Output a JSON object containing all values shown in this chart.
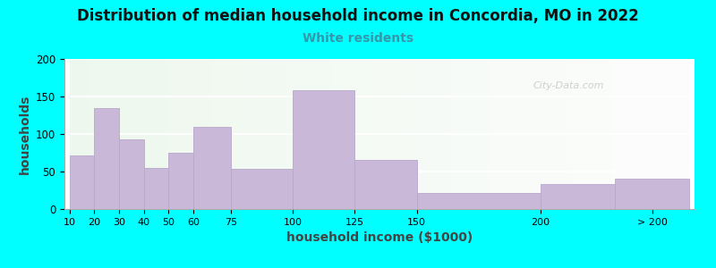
{
  "title": "Distribution of median household income in Concordia, MO in 2022",
  "subtitle": "White residents",
  "xlabel": "household income ($1000)",
  "ylabel": "households",
  "background_outer": "#00FFFF",
  "bar_color": "#c9b8d8",
  "bar_edge_color": "#b8a8cc",
  "title_fontsize": 12,
  "subtitle_fontsize": 10,
  "subtitle_color": "#3399aa",
  "xlabel_fontsize": 10,
  "ylabel_fontsize": 10,
  "bin_edges": [
    10,
    20,
    30,
    40,
    50,
    60,
    75,
    100,
    125,
    150,
    200,
    230,
    260
  ],
  "values": [
    72,
    135,
    93,
    55,
    75,
    110,
    53,
    158,
    65,
    21,
    33,
    40
  ],
  "tick_labels": [
    "10",
    "20",
    "30",
    "40",
    "50",
    "60",
    "75",
    "100",
    "125",
    "150",
    "200",
    "> 200"
  ],
  "tick_positions": [
    10,
    20,
    30,
    40,
    50,
    60,
    75,
    100,
    125,
    150,
    200,
    245
  ],
  "ylim": [
    0,
    200
  ],
  "yticks": [
    0,
    50,
    100,
    150,
    200
  ],
  "watermark": "City-Data.com"
}
